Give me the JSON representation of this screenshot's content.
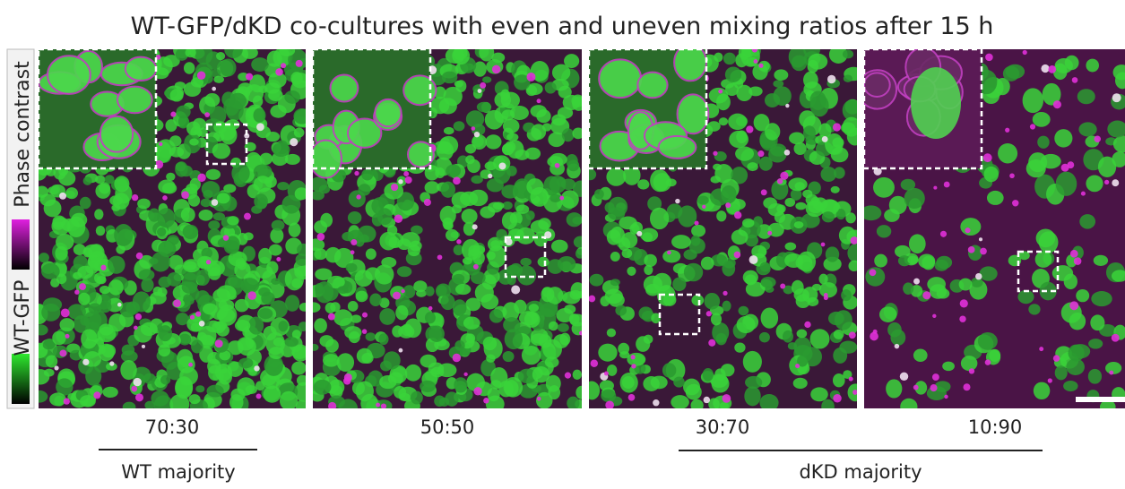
{
  "title": "WT-GFP/dKD co-cultures with even and uneven mixing ratios after 15 h",
  "legend": {
    "green_label": "WT-GFP",
    "magenta_label": "Phase contrast"
  },
  "panels": [
    {
      "label": "70:30"
    },
    {
      "label": "50:50"
    },
    {
      "label": "30:70"
    },
    {
      "label": "10:90"
    }
  ],
  "groups": [
    {
      "label": "WT majority"
    },
    {
      "label": "dKD majority"
    }
  ]
}
